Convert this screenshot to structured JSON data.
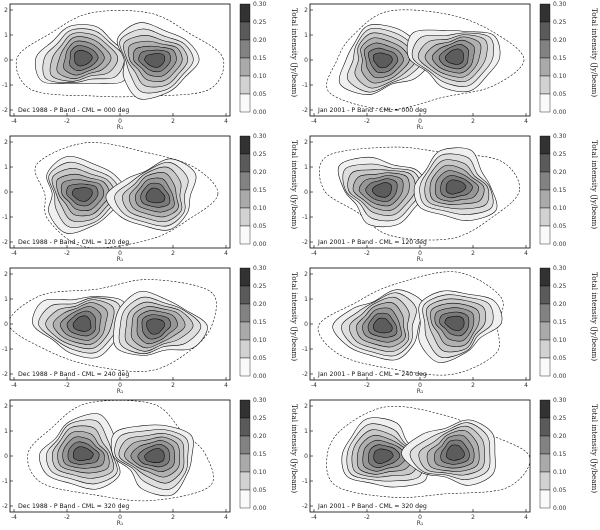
{
  "panels": [
    {
      "caption": "Dec 1988 - P Band - CML = 000 deg",
      "col": 0,
      "row": 0
    },
    {
      "caption": "Jan 2001 - P Band - CML = 000 deg",
      "col": 1,
      "row": 0
    },
    {
      "caption": "Dec 1988 - P Band - CML = 120 deg",
      "col": 0,
      "row": 1
    },
    {
      "caption": "Jan 2001 - P Band - CML = 120 deg",
      "col": 1,
      "row": 1
    },
    {
      "caption": "Dec 1988 - P Band - CML = 240 deg",
      "col": 0,
      "row": 2
    },
    {
      "caption": "Jan 2001 - P Band - CML = 240 deg",
      "col": 1,
      "row": 2
    },
    {
      "caption": "Dec 1988 - P Band - CML = 320 deg",
      "col": 0,
      "row": 3
    },
    {
      "caption": "Jan 2001 - P Band - CML = 320 deg",
      "col": 1,
      "row": 3
    }
  ],
  "x_ticks": [
    "-4",
    "-2",
    "0",
    "2",
    "4"
  ],
  "y_ticks": [
    "2",
    "1",
    "0",
    "-1",
    "-2"
  ],
  "x_axis_label": "R₁",
  "colorbar": {
    "title": "Total intensity (Jy/beam)",
    "ticks": [
      "0.30",
      "0.25",
      "0.20",
      "0.15",
      "0.10",
      "0.05",
      "0.00"
    ]
  },
  "colors": {
    "level_fills": [
      "#f0f0f0",
      "#dedede",
      "#c8c8c8",
      "#b0b0b0",
      "#969696",
      "#7a7a7a",
      "#5c5c5c",
      "#3c3c3c"
    ]
  }
}
